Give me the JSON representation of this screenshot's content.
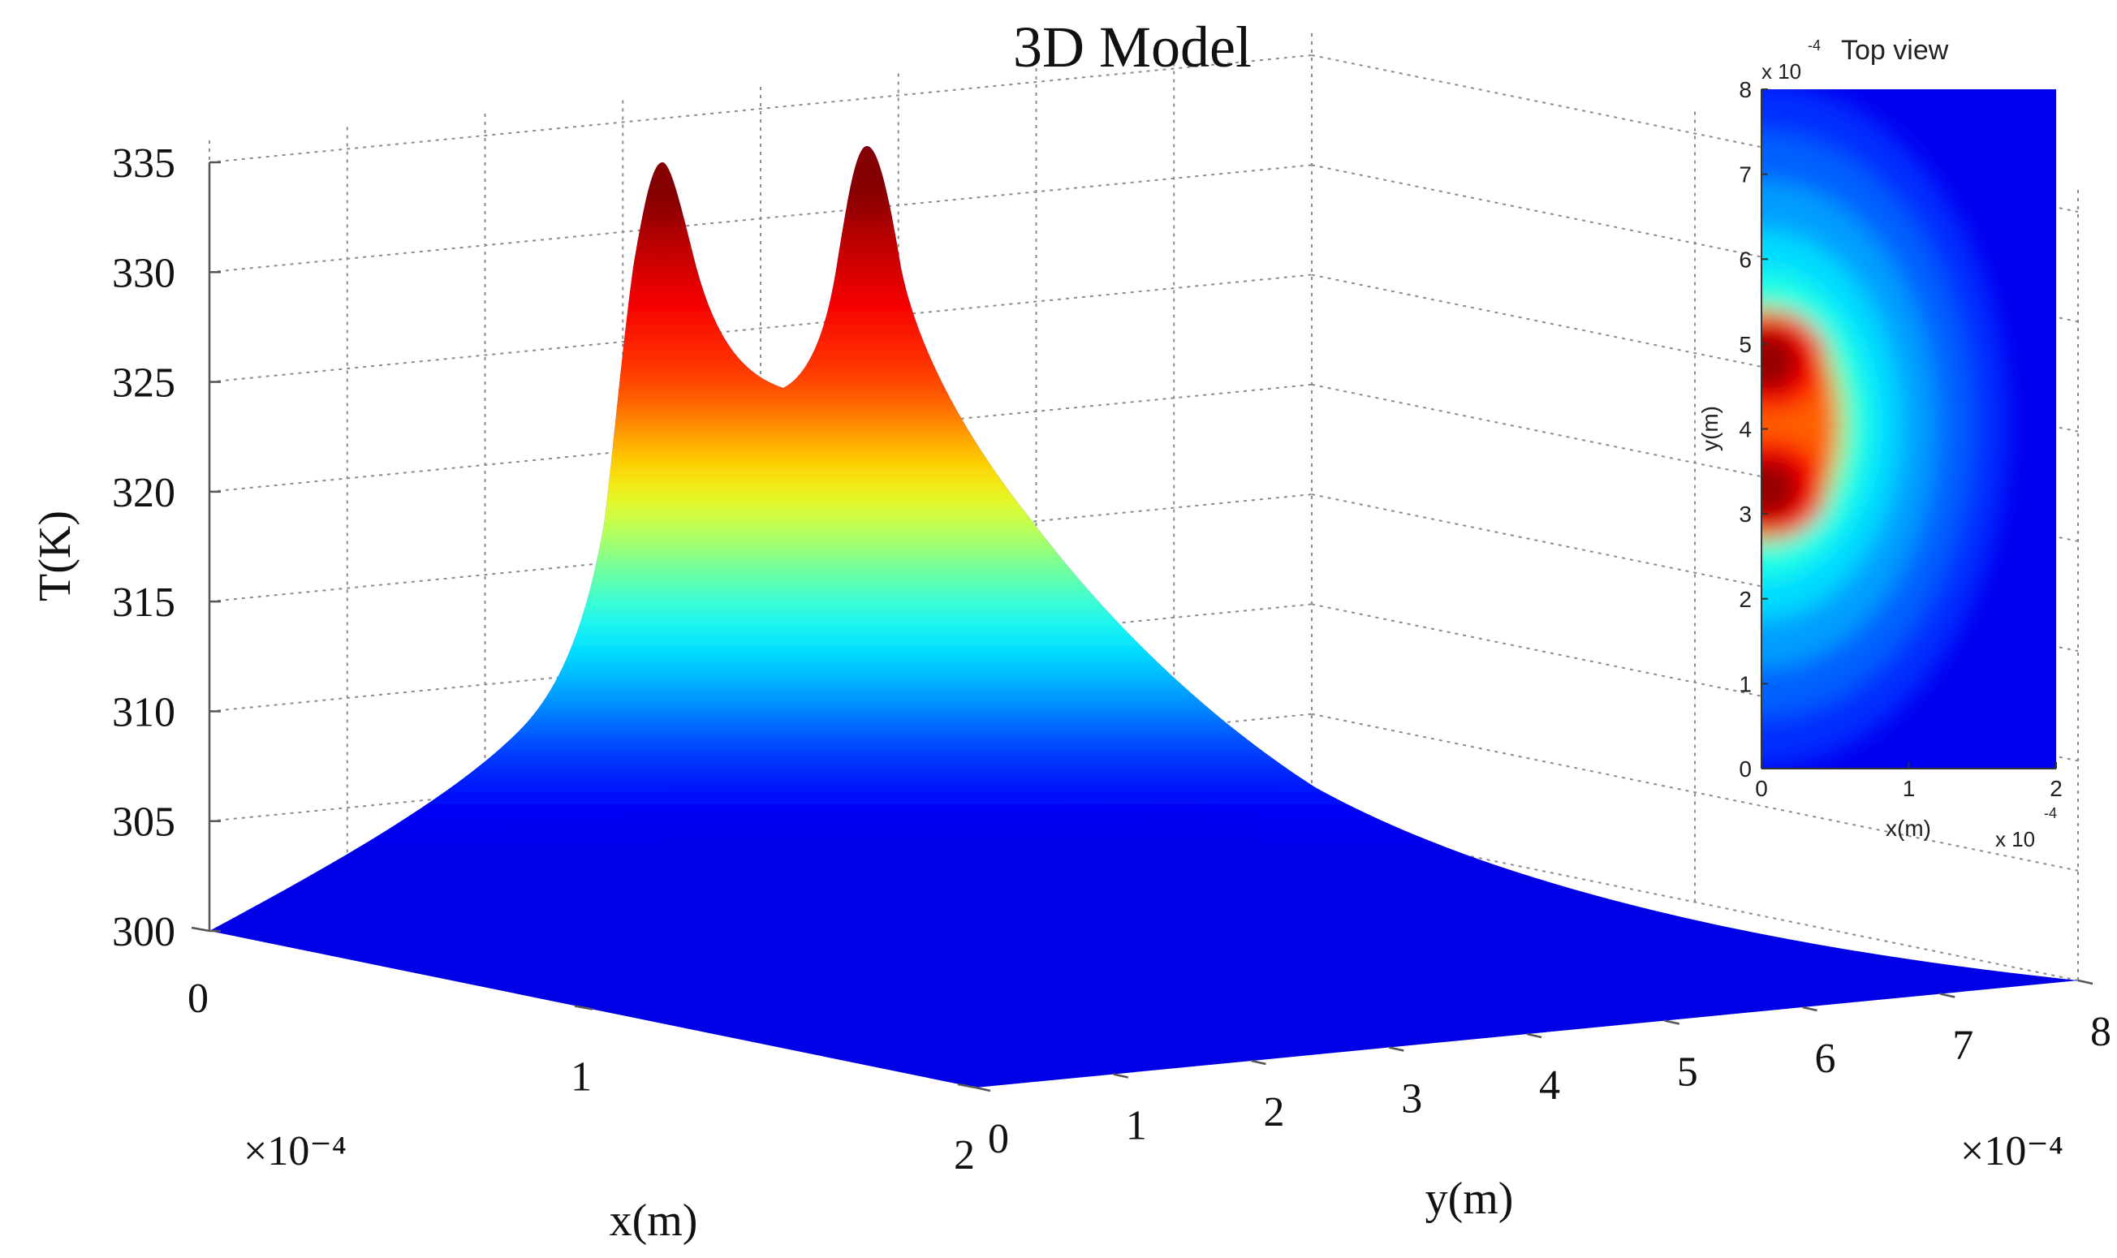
{
  "chart_data": [
    {
      "type": "surface",
      "title": "3D Model",
      "xlabel": "x(m)",
      "ylabel": "y(m)",
      "zlabel": "T(K)",
      "x_multiplier": "×10⁻⁴",
      "y_multiplier": "×10⁻⁴",
      "xlim": [
        0,
        2
      ],
      "ylim": [
        0,
        8
      ],
      "zlim": [
        300,
        335
      ],
      "x_ticks": [
        "0",
        "1",
        "2"
      ],
      "y_ticks": [
        "0",
        "1",
        "2",
        "3",
        "4",
        "5",
        "6",
        "7",
        "8"
      ],
      "z_ticks": [
        "300",
        "305",
        "310",
        "315",
        "320",
        "325",
        "330",
        "335"
      ],
      "grid": true,
      "colormap": "jet",
      "colormap_low": "#00008f",
      "colormap_high": "#7f0000",
      "peaks": [
        {
          "x": 0,
          "y": 3.2,
          "T": 334.5
        },
        {
          "x": 0,
          "y": 4.8,
          "T": 334.5
        }
      ],
      "saddle_T": 326.5,
      "edge_T": 300
    },
    {
      "type": "heatmap",
      "title": "Top view",
      "xlabel": "x(m)",
      "ylabel": "y(m)",
      "x_multiplier": "x 10",
      "y_multiplier": "x 10",
      "exponent": "-4",
      "xlim": [
        0,
        2
      ],
      "ylim": [
        0,
        8
      ],
      "x_ticks": [
        "0",
        "1",
        "2"
      ],
      "y_ticks": [
        "0",
        "1",
        "2",
        "3",
        "4",
        "5",
        "6",
        "7",
        "8"
      ],
      "colormap": "jet",
      "hot_spots": [
        {
          "x": 0,
          "y": 3.3
        },
        {
          "x": 0,
          "y": 4.8
        }
      ]
    }
  ]
}
